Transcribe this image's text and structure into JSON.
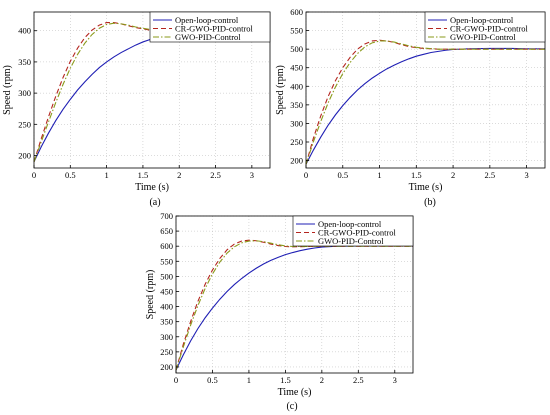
{
  "chart_data": [
    {
      "type": "line",
      "panel_label": "(a)",
      "xlabel": "Time (s)",
      "ylabel": "Speed (rpm)",
      "xlim": [
        0,
        3.25
      ],
      "ylim": [
        180,
        430
      ],
      "xticks": [
        0,
        0.5,
        1,
        1.5,
        2,
        2.5,
        3
      ],
      "xtick_labels": [
        "0",
        "0.5",
        "1",
        "1.5",
        "2",
        "2.5",
        "3"
      ],
      "yticks": [
        200,
        250,
        300,
        350,
        400
      ],
      "ytick_labels": [
        "200",
        "250",
        "300",
        "350",
        "400"
      ],
      "grid": true,
      "legend_position": "top-right",
      "series": [
        {
          "name": "Open-loop-control",
          "color": "#1f1fb4",
          "dash": "solid",
          "x": [
            0,
            0.1,
            0.2,
            0.3,
            0.4,
            0.5,
            0.6,
            0.7,
            0.8,
            0.9,
            1.0,
            1.1,
            1.2,
            1.3,
            1.4,
            1.5,
            1.6,
            1.7,
            1.8,
            1.9,
            2.0,
            2.2,
            2.5,
            2.8,
            3.0,
            3.25
          ],
          "y": [
            190,
            214,
            236,
            256,
            274,
            290,
            305,
            318,
            330,
            341,
            350,
            358,
            365,
            371,
            377,
            382,
            386,
            390,
            393,
            396,
            398,
            400,
            401,
            401,
            401,
            401
          ]
        },
        {
          "name": "CR-GWO-PID-control",
          "color": "#b4251f",
          "dash": "dashed",
          "x": [
            0,
            0.1,
            0.2,
            0.3,
            0.4,
            0.5,
            0.6,
            0.7,
            0.8,
            0.9,
            1.0,
            1.1,
            1.2,
            1.3,
            1.4,
            1.5,
            1.6,
            1.8,
            2.0,
            2.5,
            3.0,
            3.25
          ],
          "y": [
            190,
            227,
            262,
            295,
            325,
            351,
            372,
            389,
            401,
            409,
            413,
            413,
            411,
            408,
            405,
            403,
            401,
            400,
            400,
            400,
            400,
            400
          ]
        },
        {
          "name": "GWO-PID-Control",
          "color": "#8a9a1a",
          "dash": "dashdot",
          "x": [
            0,
            0.1,
            0.2,
            0.3,
            0.4,
            0.5,
            0.6,
            0.7,
            0.8,
            0.9,
            1.0,
            1.1,
            1.2,
            1.3,
            1.4,
            1.5,
            1.6,
            1.8,
            2.0,
            2.5,
            3.0,
            3.25
          ],
          "y": [
            190,
            222,
            254,
            285,
            314,
            340,
            362,
            380,
            394,
            404,
            410,
            412,
            411,
            409,
            406,
            404,
            402,
            400,
            400,
            400,
            400,
            400
          ]
        }
      ]
    },
    {
      "type": "line",
      "panel_label": "(b)",
      "xlabel": "Time (s)",
      "ylabel": "Speed (rpm)",
      "xlim": [
        0,
        3.25
      ],
      "ylim": [
        180,
        600
      ],
      "xticks": [
        0,
        0.5,
        1,
        1.5,
        2,
        2.5,
        3
      ],
      "xtick_labels": [
        "0",
        "0.5",
        "1",
        "1.5",
        "2",
        "2.5",
        "3"
      ],
      "yticks": [
        200,
        250,
        300,
        350,
        400,
        450,
        500,
        550,
        600
      ],
      "ytick_labels": [
        "200",
        "250",
        "300",
        "350",
        "400",
        "450",
        "500",
        "550",
        "600"
      ],
      "grid": true,
      "legend_position": "top-right",
      "series": [
        {
          "name": "Open-loop-control",
          "color": "#1f1fb4",
          "dash": "solid",
          "x": [
            0,
            0.1,
            0.2,
            0.3,
            0.4,
            0.5,
            0.6,
            0.7,
            0.8,
            0.9,
            1.0,
            1.1,
            1.2,
            1.3,
            1.4,
            1.5,
            1.6,
            1.7,
            1.8,
            1.9,
            2.0,
            2.2,
            2.5,
            2.8,
            3.0,
            3.25
          ],
          "y": [
            190,
            228,
            263,
            295,
            323,
            348,
            370,
            390,
            407,
            422,
            435,
            447,
            457,
            466,
            474,
            481,
            486,
            491,
            494,
            497,
            499,
            501,
            502,
            502,
            501,
            501
          ]
        },
        {
          "name": "CR-GWO-PID-control",
          "color": "#b4251f",
          "dash": "dashed",
          "x": [
            0,
            0.1,
            0.2,
            0.3,
            0.4,
            0.5,
            0.6,
            0.7,
            0.8,
            0.9,
            1.0,
            1.1,
            1.2,
            1.3,
            1.4,
            1.5,
            1.6,
            1.8,
            2.0,
            2.5,
            3.0,
            3.25
          ],
          "y": [
            190,
            260,
            320,
            372,
            415,
            450,
            478,
            500,
            514,
            522,
            524,
            522,
            518,
            512,
            507,
            504,
            502,
            500,
            500,
            500,
            500,
            500
          ]
        },
        {
          "name": "GWO-PID-Control",
          "color": "#8a9a1a",
          "dash": "dashdot",
          "x": [
            0,
            0.1,
            0.2,
            0.3,
            0.4,
            0.5,
            0.6,
            0.7,
            0.8,
            0.9,
            1.0,
            1.1,
            1.2,
            1.3,
            1.4,
            1.5,
            1.6,
            1.8,
            2.0,
            2.5,
            3.0,
            3.25
          ],
          "y": [
            190,
            250,
            305,
            355,
            398,
            434,
            464,
            488,
            506,
            517,
            522,
            522,
            519,
            514,
            509,
            505,
            503,
            500,
            500,
            500,
            500,
            500
          ]
        }
      ]
    },
    {
      "type": "line",
      "panel_label": "(c)",
      "xlabel": "Time (s)",
      "ylabel": "Speed (rpm)",
      "xlim": [
        0,
        3.25
      ],
      "ylim": [
        180,
        700
      ],
      "xticks": [
        0,
        0.5,
        1,
        1.5,
        2,
        2.5,
        3
      ],
      "xtick_labels": [
        "0",
        "0.5",
        "1",
        "1.5",
        "2",
        "2.5",
        "3"
      ],
      "yticks": [
        200,
        250,
        300,
        350,
        400,
        450,
        500,
        550,
        600,
        650,
        700
      ],
      "ytick_labels": [
        "200",
        "250",
        "300",
        "350",
        "400",
        "450",
        "500",
        "550",
        "600",
        "650",
        "700"
      ],
      "grid": true,
      "legend_position": "top-right",
      "series": [
        {
          "name": "Open-loop-control",
          "color": "#1f1fb4",
          "dash": "solid",
          "x": [
            0,
            0.1,
            0.2,
            0.3,
            0.4,
            0.5,
            0.6,
            0.7,
            0.8,
            0.9,
            1.0,
            1.1,
            1.2,
            1.3,
            1.4,
            1.5,
            1.6,
            1.7,
            1.8,
            1.9,
            2.0,
            2.2,
            2.5,
            2.8,
            3.0,
            3.25
          ],
          "y": [
            190,
            240,
            286,
            327,
            363,
            395,
            424,
            450,
            473,
            493,
            511,
            527,
            541,
            553,
            563,
            572,
            579,
            585,
            590,
            594,
            597,
            600,
            601,
            601,
            601,
            601
          ]
        },
        {
          "name": "CR-GWO-PID-control",
          "color": "#b4251f",
          "dash": "dashed",
          "x": [
            0,
            0.1,
            0.2,
            0.3,
            0.4,
            0.5,
            0.6,
            0.7,
            0.8,
            0.9,
            1.0,
            1.1,
            1.2,
            1.3,
            1.4,
            1.5,
            1.6,
            1.8,
            2.0,
            2.5,
            3.0,
            3.25
          ],
          "y": [
            190,
            275,
            350,
            417,
            474,
            521,
            559,
            588,
            607,
            617,
            620,
            618,
            613,
            607,
            602,
            599,
            598,
            599,
            600,
            600,
            600,
            600
          ]
        },
        {
          "name": "GWO-PID-Control",
          "color": "#8a9a1a",
          "dash": "dashdot",
          "x": [
            0,
            0.1,
            0.2,
            0.3,
            0.4,
            0.5,
            0.6,
            0.7,
            0.8,
            0.9,
            1.0,
            1.1,
            1.2,
            1.3,
            1.4,
            1.5,
            1.6,
            1.8,
            2.0,
            2.5,
            3.0,
            3.25
          ],
          "y": [
            190,
            266,
            338,
            403,
            460,
            508,
            547,
            577,
            598,
            611,
            617,
            618,
            615,
            610,
            605,
            601,
            599,
            599,
            600,
            600,
            600,
            600
          ]
        }
      ]
    }
  ]
}
